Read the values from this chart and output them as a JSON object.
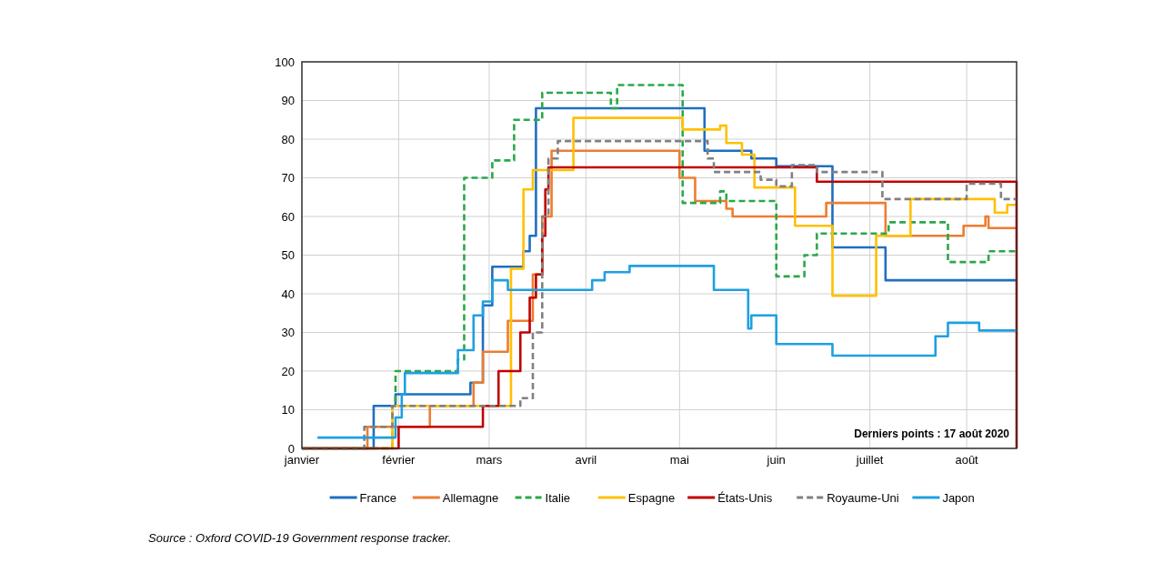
{
  "chart_data": {
    "type": "step",
    "xlim": [
      "2020-01-01",
      "2020-08-17"
    ],
    "xticks": [
      {
        "value": "2020-01-01",
        "label": "janvier"
      },
      {
        "value": "2020-02-01",
        "label": "février"
      },
      {
        "value": "2020-03-01",
        "label": "mars"
      },
      {
        "value": "2020-04-01",
        "label": "avril"
      },
      {
        "value": "2020-05-01",
        "label": "mai"
      },
      {
        "value": "2020-06-01",
        "label": "juin"
      },
      {
        "value": "2020-07-01",
        "label": "juillet"
      },
      {
        "value": "2020-08-01",
        "label": "août"
      }
    ],
    "ylim": [
      0,
      100
    ],
    "yticks": [
      0,
      10,
      20,
      30,
      40,
      50,
      60,
      70,
      80,
      90,
      100
    ],
    "grid": true,
    "legend": "bottom",
    "annotations": [
      "Derniers points : 17 août 2020",
      "Source : Oxford COVID-19 Government response tracker."
    ],
    "series": [
      {
        "name": "France",
        "color": "#1f6fc0",
        "line_style": "solid",
        "x": [
          "2020-01-01",
          "2020-01-24",
          "2020-01-31",
          "2020-02-24",
          "2020-02-28",
          "2020-03-02",
          "2020-03-12",
          "2020-03-14",
          "2020-03-16",
          "2020-05-09",
          "2020-05-24",
          "2020-06-01",
          "2020-06-19",
          "2020-07-06",
          "2020-08-17"
        ],
        "values": [
          0,
          11,
          14,
          17,
          37,
          47,
          51,
          55,
          88,
          77,
          75,
          73,
          52,
          43.5,
          43.5
        ]
      },
      {
        "name": "Allemagne",
        "color": "#ed7d31",
        "line_style": "solid",
        "x": [
          "2020-01-01",
          "2020-01-22",
          "2020-02-11",
          "2020-02-25",
          "2020-02-28",
          "2020-03-07",
          "2020-03-15",
          "2020-03-18",
          "2020-03-21",
          "2020-05-01",
          "2020-05-06",
          "2020-05-16",
          "2020-05-18",
          "2020-06-17",
          "2020-07-06",
          "2020-07-31",
          "2020-08-07",
          "2020-08-08",
          "2020-08-17"
        ],
        "values": [
          0,
          5.6,
          11,
          17,
          25,
          33,
          45,
          60,
          77,
          70,
          64,
          62,
          60,
          63.5,
          55,
          57.6,
          60,
          57,
          57
        ]
      },
      {
        "name": "Italie",
        "color": "#2aa84a",
        "line_style": "dashed",
        "x": [
          "2020-01-01",
          "2020-01-30",
          "2020-01-31",
          "2020-02-20",
          "2020-02-22",
          "2020-03-02",
          "2020-03-09",
          "2020-03-18",
          "2020-04-09",
          "2020-04-11",
          "2020-05-02",
          "2020-05-14",
          "2020-05-16",
          "2020-06-01",
          "2020-06-10",
          "2020-06-14",
          "2020-07-07",
          "2020-07-26",
          "2020-08-08",
          "2020-08-17"
        ],
        "values": [
          0,
          11,
          20,
          23,
          70,
          74.5,
          85,
          92,
          88,
          94,
          63.5,
          66.5,
          64,
          44.5,
          50,
          55.6,
          58.5,
          48.2,
          51,
          51
        ]
      },
      {
        "name": "Espagne",
        "color": "#ffc000",
        "line_style": "solid",
        "x": [
          "2020-01-01",
          "2020-01-30",
          "2020-03-08",
          "2020-03-12",
          "2020-03-15",
          "2020-03-28",
          "2020-05-02",
          "2020-05-14",
          "2020-05-16",
          "2020-05-21",
          "2020-05-25",
          "2020-06-07",
          "2020-06-19",
          "2020-07-03",
          "2020-07-14",
          "2020-08-10",
          "2020-08-14",
          "2020-08-17"
        ],
        "values": [
          0,
          11,
          46.5,
          67,
          72,
          85.5,
          82.5,
          83.5,
          79,
          76,
          67.5,
          57.6,
          39.5,
          55,
          64.5,
          61,
          63,
          63
        ]
      },
      {
        "name": "États-Unis",
        "color": "#c00000",
        "line_style": "solid",
        "x": [
          "2020-01-01",
          "2020-02-01",
          "2020-02-28",
          "2020-03-04",
          "2020-03-11",
          "2020-03-14",
          "2020-03-16",
          "2020-03-18",
          "2020-03-19",
          "2020-03-20",
          "2020-06-14",
          "2020-08-17"
        ],
        "values": [
          0,
          5.6,
          11,
          20,
          30,
          39,
          45,
          55,
          67,
          72.7,
          69,
          0
        ]
      },
      {
        "name": "Royaume-Uni",
        "color": "#808080",
        "line_style": "dashed",
        "x": [
          "2020-01-01",
          "2020-01-21",
          "2020-01-30",
          "2020-03-11",
          "2020-03-15",
          "2020-03-18",
          "2020-03-20",
          "2020-03-23",
          "2020-05-10",
          "2020-05-12",
          "2020-05-27",
          "2020-06-01",
          "2020-06-06",
          "2020-06-14",
          "2020-07-05",
          "2020-08-01",
          "2020-08-12",
          "2020-08-17"
        ],
        "values": [
          0,
          5.6,
          11,
          13,
          30,
          60,
          75,
          79.5,
          75,
          71.5,
          69.5,
          67.8,
          73.3,
          71.5,
          64.5,
          68.5,
          64.5,
          64.5
        ]
      },
      {
        "name": "Japon",
        "color": "#1ea0e0",
        "line_style": "solid",
        "x": [
          "2020-01-06",
          "2020-01-31",
          "2020-02-02",
          "2020-02-03",
          "2020-02-20",
          "2020-02-25",
          "2020-02-28",
          "2020-03-02",
          "2020-03-07",
          "2020-04-03",
          "2020-04-07",
          "2020-04-15",
          "2020-05-12",
          "2020-05-23",
          "2020-05-24",
          "2020-06-01",
          "2020-06-19",
          "2020-07-22",
          "2020-07-26",
          "2020-08-05",
          "2020-08-17"
        ],
        "values": [
          2.8,
          8,
          14,
          19.5,
          25.4,
          34.4,
          38,
          43.5,
          41,
          43.5,
          45.6,
          47.2,
          41,
          31,
          34.4,
          27,
          24,
          29,
          32.5,
          30.5,
          30.5
        ]
      }
    ]
  }
}
